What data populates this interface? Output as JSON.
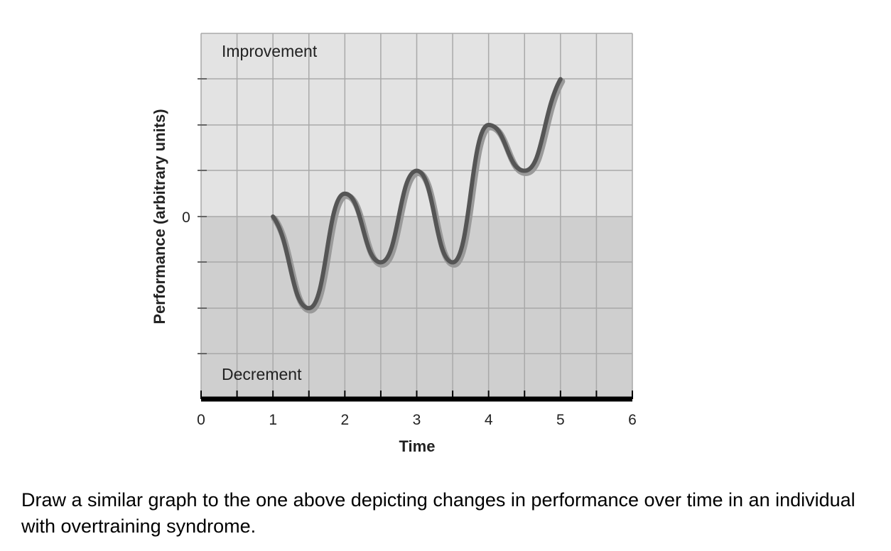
{
  "chart_data": {
    "type": "line",
    "xlabel": "Time",
    "ylabel": "Performance (arbitrary units)",
    "xlim": [
      0,
      6
    ],
    "ylim": [
      -4,
      4
    ],
    "x_ticks": [
      "0",
      "1",
      "2",
      "3",
      "4",
      "5",
      "6"
    ],
    "y_ticks": [
      "0"
    ],
    "region_labels": {
      "upper": "Improvement",
      "lower": "Decrement"
    },
    "grid": true,
    "series": [
      {
        "x": [
          1,
          1.5,
          2,
          2.5,
          3,
          3.5,
          4,
          4.5,
          5
        ],
        "y": [
          0,
          -2,
          0.5,
          -1,
          1,
          -1,
          2,
          1,
          3
        ]
      }
    ]
  },
  "caption": "Draw a similar graph to the one above depicting changes in performance over time in an individual with overtraining syndrome.",
  "colors": {
    "improvement_bg": "#e3e3e3",
    "decrement_bg": "#cfcfcf",
    "grid": "#a9a9a9",
    "curve": "#555555",
    "curve_shadow": "#9a9a9a",
    "axis": "#000000"
  }
}
